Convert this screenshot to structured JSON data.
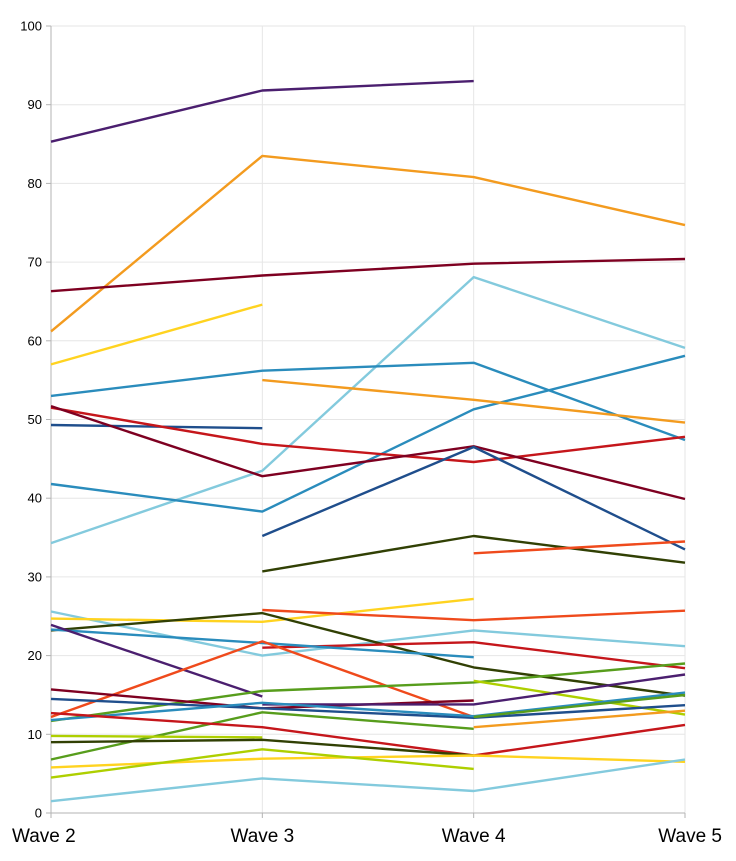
{
  "chart_data": {
    "type": "line",
    "title": "",
    "xlabel": "",
    "ylabel": "",
    "categories": [
      "Wave 2",
      "Wave 3",
      "Wave 4",
      "Wave 5"
    ],
    "ylim": [
      0,
      100
    ],
    "yticks": [
      "0",
      "10",
      "20",
      "30",
      "40",
      "50",
      "60",
      "70",
      "80",
      "90",
      "100"
    ],
    "grid": true,
    "legend": "none",
    "series": [
      {
        "color": "#4b1f6f",
        "values": [
          85.3,
          91.8,
          93.0,
          null
        ]
      },
      {
        "color": "#f39b1f",
        "values": [
          61.2,
          83.5,
          80.8,
          74.7
        ]
      },
      {
        "color": "#7e0021",
        "values": [
          66.3,
          68.3,
          69.8,
          70.4
        ]
      },
      {
        "color": "#ffd320",
        "values": [
          57.0,
          64.6,
          null,
          null
        ]
      },
      {
        "color": "#83cadd",
        "values": [
          34.3,
          43.5,
          68.1,
          59.1
        ]
      },
      {
        "color": "#2a8cbc",
        "values": [
          53.0,
          56.2,
          57.2,
          47.4
        ]
      },
      {
        "color": "#2a8cbc",
        "values": [
          41.8,
          38.3,
          51.3,
          58.1
        ]
      },
      {
        "color": "#f39b1f",
        "values": [
          null,
          55.0,
          52.5,
          49.6
        ]
      },
      {
        "color": "#1f4e8c",
        "values": [
          49.3,
          48.9,
          null,
          null
        ]
      },
      {
        "color": "#c5161b",
        "values": [
          51.5,
          46.9,
          44.6,
          47.8
        ]
      },
      {
        "color": "#7e0021",
        "values": [
          51.7,
          42.8,
          46.6,
          39.9
        ]
      },
      {
        "color": "#1f4e8c",
        "values": [
          null,
          35.2,
          46.5,
          33.5
        ]
      },
      {
        "color": "#314004",
        "values": [
          null,
          30.7,
          35.2,
          31.8
        ]
      },
      {
        "color": "#ef4a1c",
        "values": [
          null,
          null,
          33.0,
          34.5
        ]
      },
      {
        "color": "#83cadd",
        "values": [
          25.6,
          20.0,
          23.2,
          21.2
        ]
      },
      {
        "color": "#ffd320",
        "values": [
          24.7,
          24.3,
          27.2,
          null
        ]
      },
      {
        "color": "#314004",
        "values": [
          23.2,
          25.4,
          18.5,
          14.9
        ]
      },
      {
        "color": "#ef4a1c",
        "values": [
          null,
          25.8,
          24.5,
          25.7
        ]
      },
      {
        "color": "#c5161b",
        "values": [
          null,
          21.0,
          21.7,
          18.4
        ]
      },
      {
        "color": "#2a8cbc",
        "values": [
          23.3,
          21.6,
          19.8,
          null
        ]
      },
      {
        "color": "#4b1f6f",
        "values": [
          23.9,
          14.8,
          null,
          null
        ]
      },
      {
        "color": "#ef4a1c",
        "values": [
          12.2,
          21.8,
          12.2,
          null
        ]
      },
      {
        "color": "#579d1c",
        "values": [
          11.7,
          15.5,
          16.6,
          19.0
        ]
      },
      {
        "color": "#aecf00",
        "values": [
          null,
          null,
          16.8,
          12.5
        ]
      },
      {
        "color": "#7e0021",
        "values": [
          15.7,
          13.3,
          14.3,
          null
        ]
      },
      {
        "color": "#1f4e8c",
        "values": [
          14.5,
          13.3,
          12.1,
          13.7
        ]
      },
      {
        "color": "#4b1f6f",
        "values": [
          null,
          13.8,
          13.8,
          17.6
        ]
      },
      {
        "color": "#2a8cbc",
        "values": [
          11.8,
          14.0,
          12.3,
          15.3
        ]
      },
      {
        "color": "#579d1c",
        "values": [
          6.8,
          12.8,
          10.7,
          null
        ]
      },
      {
        "color": "#c5161b",
        "values": [
          12.7,
          10.9,
          7.3,
          11.2
        ]
      },
      {
        "color": "#f39b1f",
        "values": [
          null,
          null,
          10.9,
          13.0
        ]
      },
      {
        "color": "#579d1c",
        "values": [
          null,
          null,
          12.2,
          15.0
        ]
      },
      {
        "color": "#aecf00",
        "values": [
          9.8,
          9.6,
          null,
          null
        ]
      },
      {
        "color": "#314004",
        "values": [
          9.0,
          9.3,
          7.3,
          null
        ]
      },
      {
        "color": "#ffd320",
        "values": [
          5.8,
          6.9,
          7.3,
          6.5
        ]
      },
      {
        "color": "#aecf00",
        "values": [
          4.5,
          8.1,
          5.6,
          null
        ]
      },
      {
        "color": "#83cadd",
        "values": [
          1.5,
          4.4,
          2.8,
          6.8
        ]
      }
    ]
  }
}
